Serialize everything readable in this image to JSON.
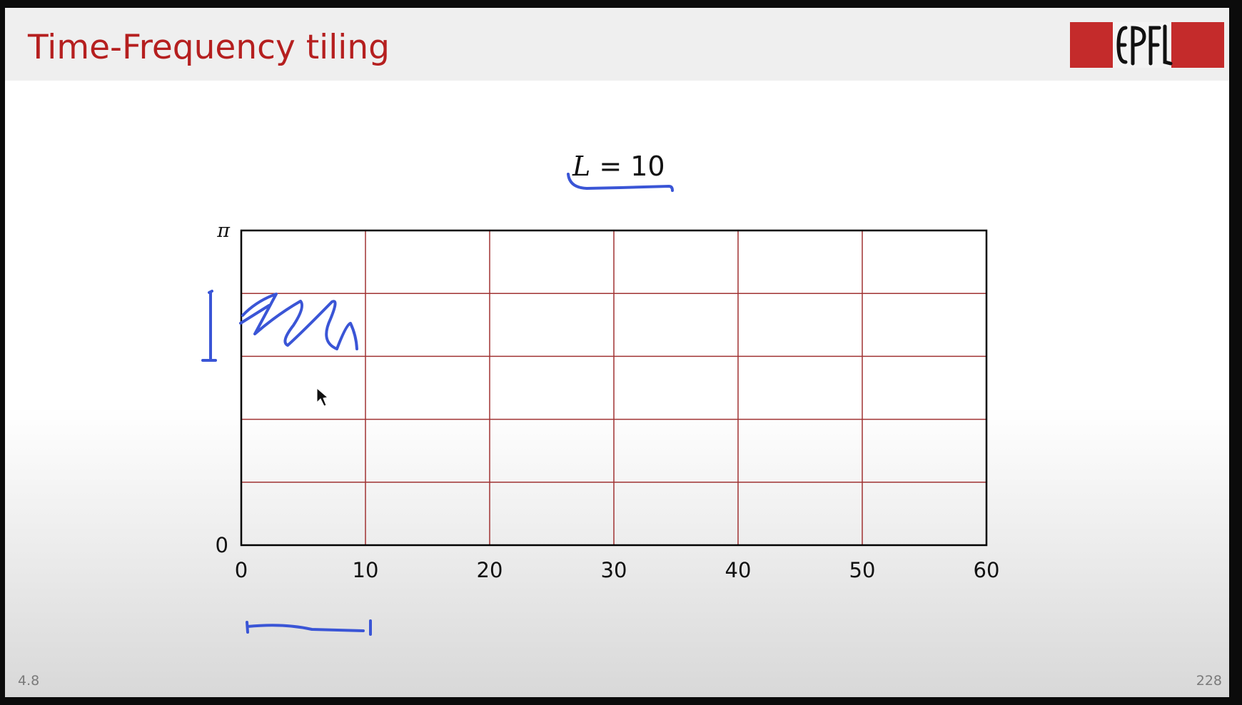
{
  "slide": {
    "title": "Time-Frequency tiling",
    "formula_var": "L",
    "formula_rest": " = 10",
    "section_number": "4.8",
    "page_number": "228",
    "logo_text": "EPFL"
  },
  "colors": {
    "brand_red": "#b51f1f",
    "grid_line": "#a03232",
    "axis_frame": "#000000",
    "pen_annotation": "#3a55d6"
  },
  "chart_data": {
    "type": "grid",
    "x_ticks": [
      "0",
      "10",
      "20",
      "30",
      "40",
      "50",
      "60"
    ],
    "y_ticks": [
      "0",
      "π"
    ],
    "xlim": [
      0,
      60
    ],
    "vertical_lines": [
      10,
      20,
      30,
      40,
      50
    ],
    "horizontal_divisions": 5,
    "grid": true
  }
}
